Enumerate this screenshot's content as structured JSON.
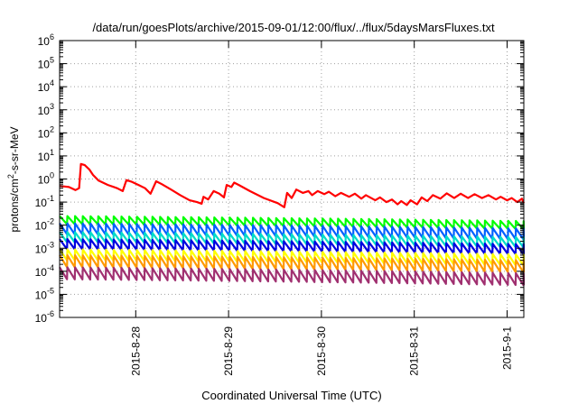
{
  "chart_data": {
    "type": "line",
    "title": "/data/run/goesPlots/archive/2015-09-01/12:00/flux/../flux/5daysMarsFluxes.txt",
    "xlabel": "Coordinated Universal Time (UTC)",
    "ylabel": "protons/cm²-s-sr-MeV",
    "yscale": "log",
    "ylim_exp": [
      -6,
      6
    ],
    "ytick_exps": [
      -6,
      -5,
      -4,
      -3,
      -2,
      -1,
      0,
      1,
      2,
      3,
      4,
      5,
      6
    ],
    "x_day_range": [
      0.0,
      5.0
    ],
    "xticks": [
      {
        "label": "2015-8-28",
        "day": 0.82
      },
      {
        "label": "2015-8-29",
        "day": 1.82
      },
      {
        "label": "2015-8-30",
        "day": 2.82
      },
      {
        "label": "2015-8-31",
        "day": 3.82
      },
      {
        "label": "2015-9-1",
        "day": 4.82
      }
    ],
    "grid": true,
    "sawtooth_period_days": 0.0833,
    "series": [
      {
        "color": "#ff0000",
        "sawtooth": false,
        "points": [
          [
            0.0,
            0.5
          ],
          [
            0.1,
            0.45
          ],
          [
            0.17,
            0.33
          ],
          [
            0.21,
            0.4
          ],
          [
            0.23,
            4.5
          ],
          [
            0.27,
            4.0
          ],
          [
            0.32,
            2.6
          ],
          [
            0.36,
            1.5
          ],
          [
            0.42,
            0.85
          ],
          [
            0.52,
            0.55
          ],
          [
            0.62,
            0.4
          ],
          [
            0.68,
            0.3
          ],
          [
            0.72,
            0.9
          ],
          [
            0.78,
            0.75
          ],
          [
            0.85,
            0.55
          ],
          [
            0.92,
            0.4
          ],
          [
            0.98,
            0.23
          ],
          [
            1.04,
            0.8
          ],
          [
            1.1,
            0.6
          ],
          [
            1.2,
            0.35
          ],
          [
            1.3,
            0.2
          ],
          [
            1.4,
            0.12
          ],
          [
            1.48,
            0.1
          ],
          [
            1.53,
            0.085
          ],
          [
            1.55,
            0.17
          ],
          [
            1.6,
            0.13
          ],
          [
            1.66,
            0.3
          ],
          [
            1.72,
            0.23
          ],
          [
            1.77,
            0.16
          ],
          [
            1.8,
            0.55
          ],
          [
            1.85,
            0.45
          ],
          [
            1.88,
            0.7
          ],
          [
            1.93,
            0.55
          ],
          [
            2.05,
            0.3
          ],
          [
            2.2,
            0.15
          ],
          [
            2.35,
            0.09
          ],
          [
            2.42,
            0.06
          ],
          [
            2.45,
            0.25
          ],
          [
            2.5,
            0.15
          ],
          [
            2.55,
            0.35
          ],
          [
            2.62,
            0.25
          ],
          [
            2.68,
            0.3
          ],
          [
            2.72,
            0.2
          ],
          [
            2.78,
            0.3
          ],
          [
            2.85,
            0.22
          ],
          [
            2.9,
            0.28
          ],
          [
            2.97,
            0.18
          ],
          [
            3.03,
            0.25
          ],
          [
            3.12,
            0.17
          ],
          [
            3.18,
            0.23
          ],
          [
            3.25,
            0.14
          ],
          [
            3.3,
            0.2
          ],
          [
            3.4,
            0.12
          ],
          [
            3.45,
            0.16
          ],
          [
            3.52,
            0.1
          ],
          [
            3.58,
            0.13
          ],
          [
            3.64,
            0.08
          ],
          [
            3.68,
            0.11
          ],
          [
            3.74,
            0.075
          ],
          [
            3.78,
            0.12
          ],
          [
            3.85,
            0.08
          ],
          [
            3.9,
            0.16
          ],
          [
            3.96,
            0.11
          ],
          [
            4.02,
            0.2
          ],
          [
            4.1,
            0.14
          ],
          [
            4.17,
            0.24
          ],
          [
            4.25,
            0.15
          ],
          [
            4.32,
            0.23
          ],
          [
            4.4,
            0.15
          ],
          [
            4.47,
            0.22
          ],
          [
            4.55,
            0.15
          ],
          [
            4.62,
            0.2
          ],
          [
            4.7,
            0.13
          ],
          [
            4.75,
            0.17
          ],
          [
            4.82,
            0.12
          ],
          [
            4.87,
            0.15
          ],
          [
            4.93,
            0.1
          ],
          [
            4.98,
            0.14
          ],
          [
            5.0,
            0.09
          ]
        ]
      },
      {
        "color": "#00ff00",
        "sawtooth": true,
        "high": 0.025,
        "low": 0.011,
        "end_decay": 0.6
      },
      {
        "color": "#0060ff",
        "sawtooth": true,
        "high": 0.012,
        "low": 0.004,
        "end_decay": 0.6
      },
      {
        "color": "#00dcc8",
        "sawtooth": true,
        "high": 0.005,
        "low": 0.0018,
        "end_decay": 0.6
      },
      {
        "color": "#0000e0",
        "sawtooth": true,
        "high": 0.0025,
        "low": 0.0009,
        "end_decay": 0.6
      },
      {
        "color": "#ffff00",
        "sawtooth": true,
        "high": 0.0009,
        "low": 0.0003,
        "end_decay": 0.6
      },
      {
        "color": "#ff9900",
        "sawtooth": true,
        "high": 0.0005,
        "low": 0.00015,
        "end_decay": 0.6
      },
      {
        "color": "#a03070",
        "sawtooth": true,
        "high": 0.00015,
        "low": 4.5e-05,
        "end_decay": 0.55
      }
    ]
  }
}
